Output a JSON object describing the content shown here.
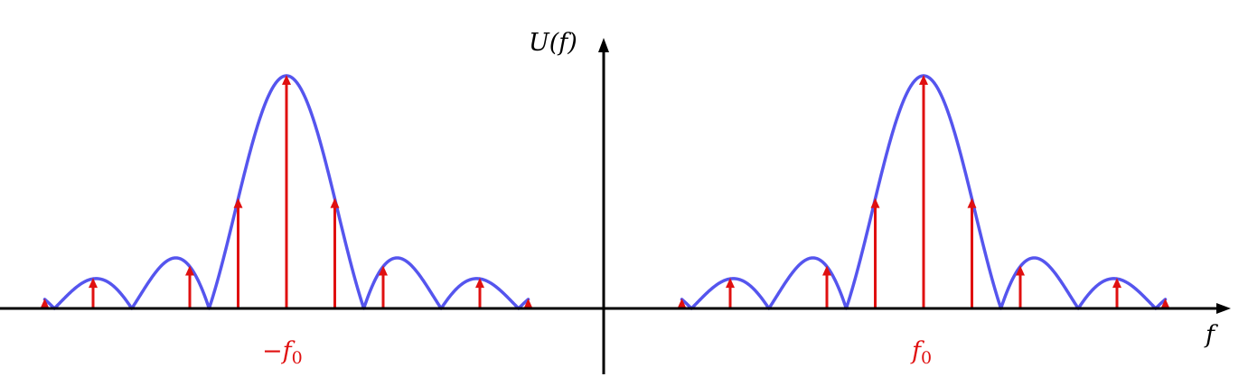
{
  "colors": {
    "envelope": "#5555ee",
    "impulse": "#e01010",
    "axis": "#000000",
    "label_red": "#e01010"
  },
  "axes": {
    "y_label": "U(f)",
    "x_label": "f"
  },
  "markers": {
    "neg": {
      "sign": "−",
      "symbol": "f",
      "sub": "0"
    },
    "pos": {
      "symbol": "f",
      "sub": "0"
    }
  },
  "spectrum": {
    "envelope": "sinc",
    "lobe_width": 1.6,
    "impulse_spacing": 1,
    "impulse_offsets": [
      -5,
      -4,
      -2,
      -1,
      0,
      1,
      2,
      4,
      5
    ],
    "envelope_extent": [
      -5,
      5
    ],
    "centers": [
      "-f0",
      "f0"
    ]
  }
}
